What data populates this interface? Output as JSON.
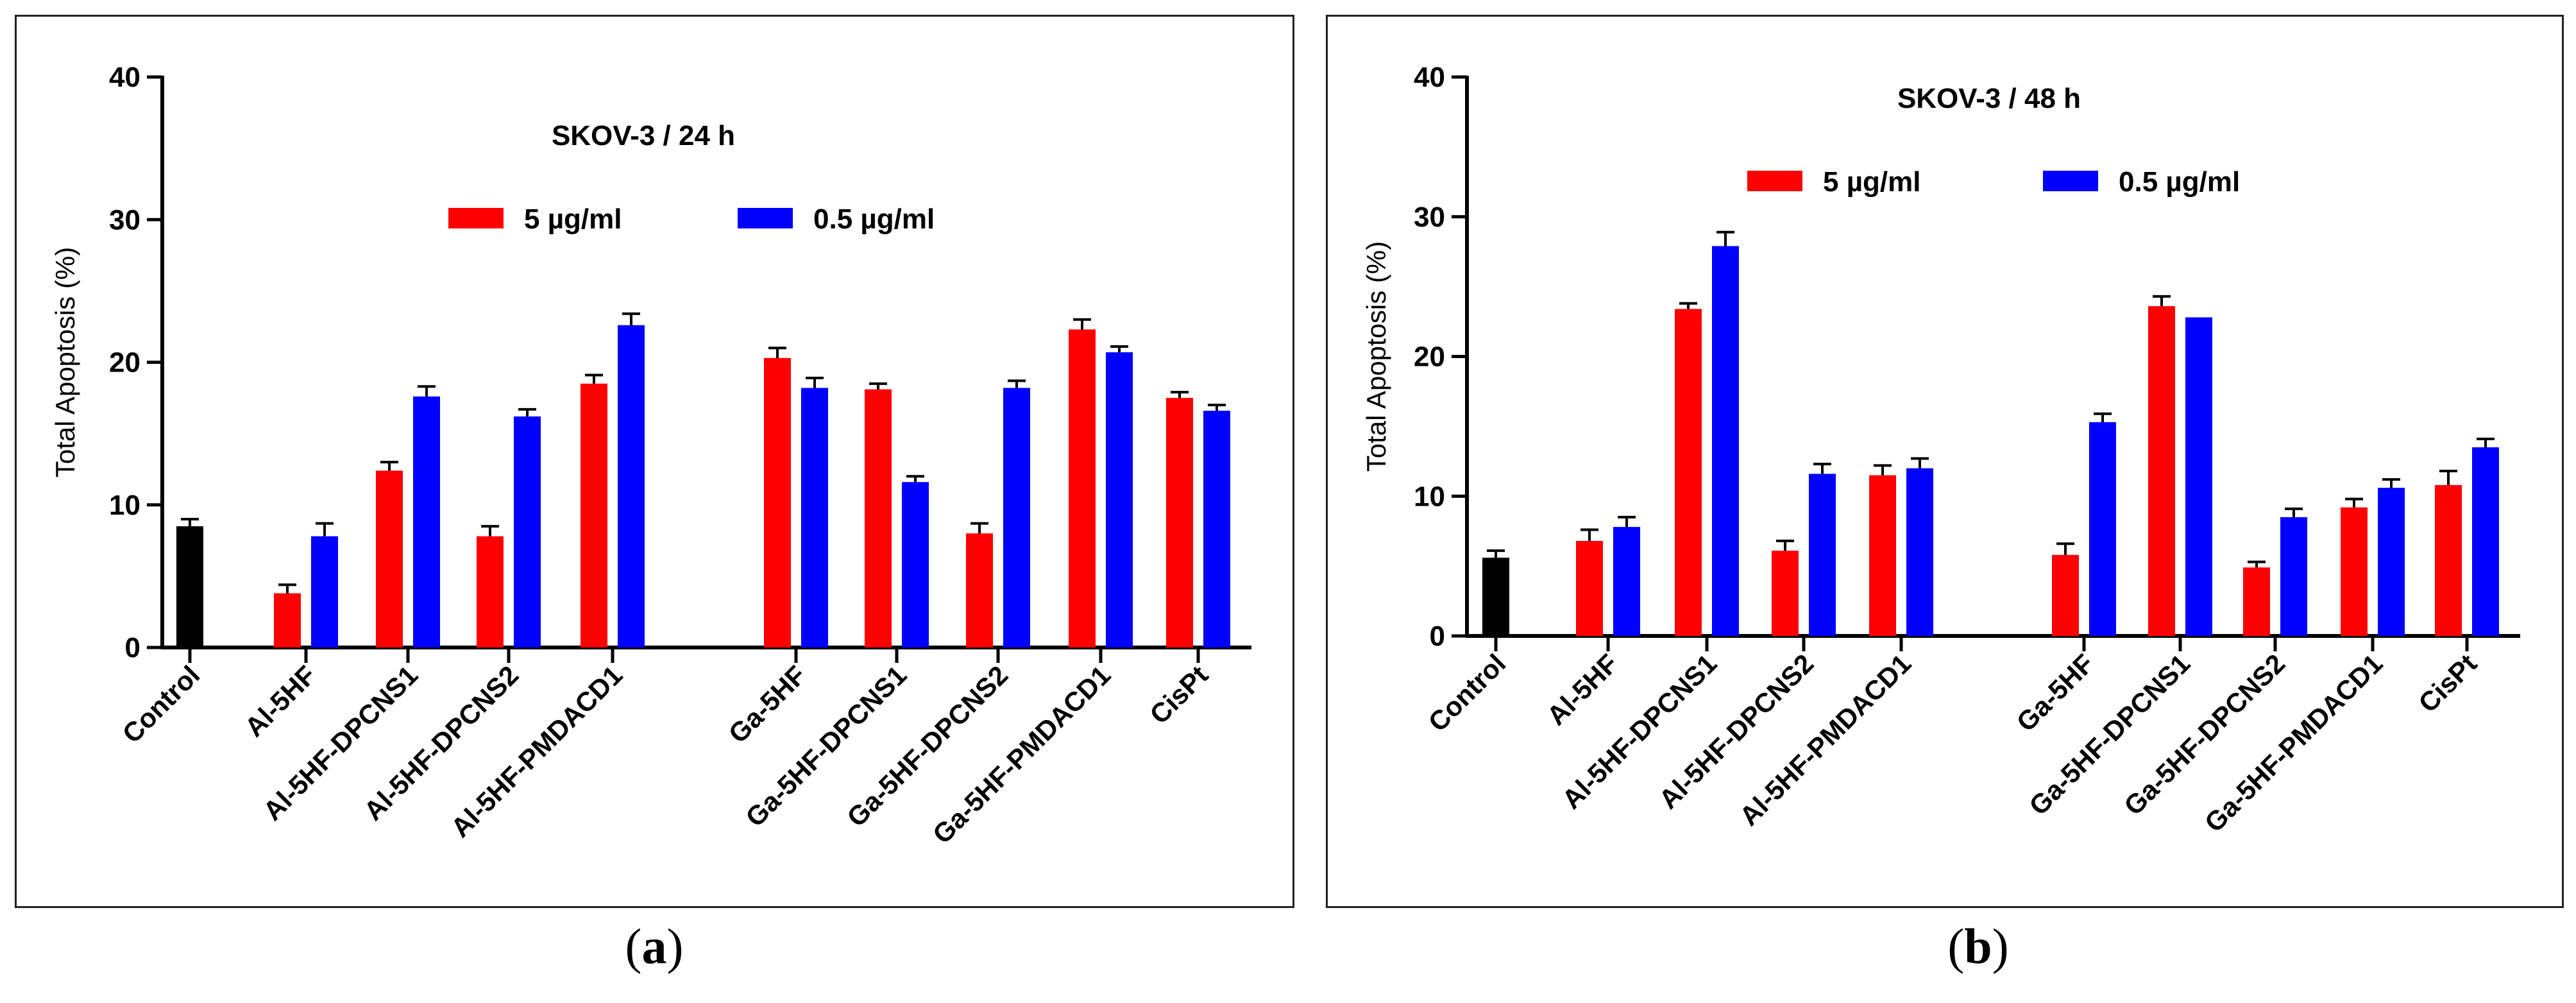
{
  "chart_data": [
    {
      "type": "bar",
      "title": "SKOV-3 / 24 h",
      "xlabel": "",
      "ylabel": "Total Apoptosis (%)",
      "ylim": [
        0,
        40
      ],
      "yticks": [
        0,
        10,
        20,
        30,
        40
      ],
      "legend_position": "top-center",
      "categories": [
        "Control",
        "Al-5HF",
        "Al-5HF-DPCNS1",
        "Al-5HF-DPCNS2",
        "Al-5HF-PMDACD1",
        "Ga-5HF",
        "Ga-5HF-DPCNS1",
        "Ga-5HF-DPCNS2",
        "Ga-5HF-PMDACD1",
        "CisPt"
      ],
      "control": {
        "value": 8.5,
        "error": 0.5,
        "color": "#000000"
      },
      "series": [
        {
          "name": "5 µg/ml",
          "color": "#ff0000",
          "values": [
            null,
            3.8,
            12.4,
            7.8,
            18.5,
            20.3,
            18.1,
            8.0,
            22.3,
            17.5
          ],
          "errors": [
            null,
            0.6,
            0.6,
            0.7,
            0.6,
            0.7,
            0.4,
            0.7,
            0.7,
            0.4
          ]
        },
        {
          "name": "0.5 µg/ml",
          "color": "#0000ff",
          "values": [
            null,
            7.8,
            17.6,
            16.2,
            22.6,
            18.2,
            11.6,
            18.2,
            20.7,
            16.6
          ],
          "errors": [
            null,
            0.9,
            0.7,
            0.5,
            0.8,
            0.7,
            0.4,
            0.5,
            0.4,
            0.4
          ]
        }
      ]
    },
    {
      "type": "bar",
      "title": "SKOV-3 / 48 h",
      "xlabel": "",
      "ylabel": "Total Apoptosis (%)",
      "ylim": [
        0,
        40
      ],
      "yticks": [
        0,
        10,
        20,
        30,
        40
      ],
      "legend_position": "top-center",
      "categories": [
        "Control",
        "Al-5HF",
        "Al-5HF-DPCNS1",
        "Al-5HF-DPCNS2",
        "Al-5HF-PMDACD1",
        "Ga-5HF",
        "Ga-5HF-DPCNS1",
        "Ga-5HF-DPCNS2",
        "Ga-5HF-PMDACD1",
        "CisPt"
      ],
      "control": {
        "value": 5.6,
        "error": 0.5,
        "color": "#000000"
      },
      "series": [
        {
          "name": "5 µg/ml",
          "color": "#ff0000",
          "values": [
            null,
            6.8,
            23.4,
            6.1,
            11.5,
            5.8,
            23.6,
            4.9,
            9.2,
            10.8
          ],
          "errors": [
            null,
            0.8,
            0.4,
            0.7,
            0.7,
            0.8,
            0.7,
            0.4,
            0.6,
            1.0
          ]
        },
        {
          "name": "0.5 µg/ml",
          "color": "#0000ff",
          "values": [
            null,
            7.8,
            27.9,
            11.6,
            12.0,
            15.3,
            22.8,
            8.5,
            10.6,
            13.5
          ],
          "errors": [
            null,
            0.7,
            1.0,
            0.7,
            0.7,
            0.6,
            0.0,
            0.6,
            0.6,
            0.6
          ]
        }
      ]
    }
  ],
  "captions": {
    "a": "a",
    "b": "b"
  }
}
